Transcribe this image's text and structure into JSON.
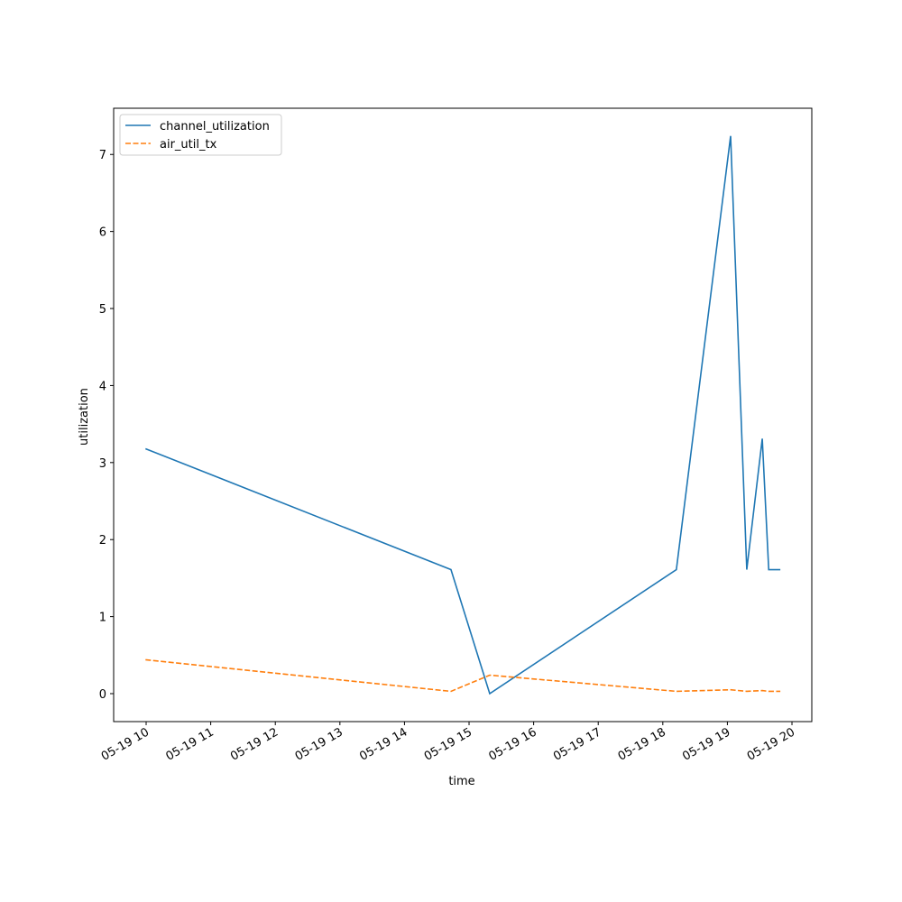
{
  "chart_data": {
    "type": "line",
    "x_label": "time",
    "y_label": "utilization",
    "x": [
      9.99,
      14.72,
      15.32,
      18.21,
      19.05,
      19.3,
      19.54,
      19.64,
      19.82
    ],
    "series": [
      {
        "name": "channel_utilization",
        "color": "#1f77b4",
        "linestyle": "solid",
        "values": [
          3.18,
          1.61,
          0.0,
          1.61,
          7.24,
          1.61,
          3.31,
          1.61,
          1.61
        ]
      },
      {
        "name": "air_util_tx",
        "color": "#ff7f0e",
        "linestyle": "dashed",
        "values": [
          0.44,
          0.03,
          0.24,
          0.03,
          0.05,
          0.03,
          0.04,
          0.03,
          0.03
        ]
      }
    ],
    "xlim": [
      9.497,
      20.307
    ],
    "ylim": [
      -0.363,
      7.6
    ],
    "xticks": [
      {
        "value": 10,
        "label": "05-19 10"
      },
      {
        "value": 11,
        "label": "05-19 11"
      },
      {
        "value": 12,
        "label": "05-19 12"
      },
      {
        "value": 13,
        "label": "05-19 13"
      },
      {
        "value": 14,
        "label": "05-19 14"
      },
      {
        "value": 15,
        "label": "05-19 15"
      },
      {
        "value": 16,
        "label": "05-19 16"
      },
      {
        "value": 17,
        "label": "05-19 17"
      },
      {
        "value": 18,
        "label": "05-19 18"
      },
      {
        "value": 19,
        "label": "05-19 19"
      },
      {
        "value": 20,
        "label": "05-19 20"
      }
    ],
    "yticks": [
      0,
      1,
      2,
      3,
      4,
      5,
      6,
      7
    ],
    "legend": "upper-left",
    "grid": false
  }
}
